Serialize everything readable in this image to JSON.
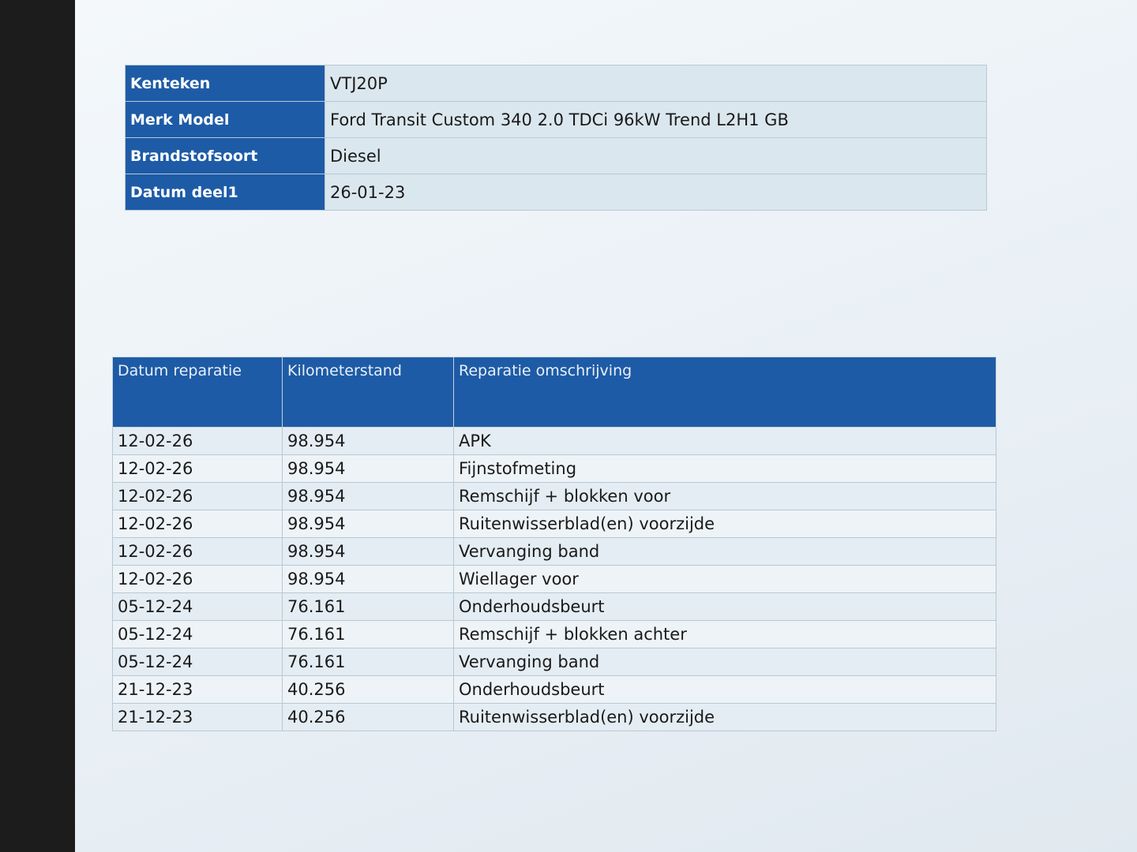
{
  "vehicle": {
    "rows": [
      [
        "Kenteken",
        "VTJ20P"
      ],
      [
        "Merk Model",
        "Ford Transit Custom 340 2.0 TDCi 96kW Trend L2H1 GB"
      ],
      [
        "Brandstofsoort",
        "Diesel"
      ],
      [
        "Datum deel1",
        "26-01-23"
      ]
    ]
  },
  "repairs": {
    "header": [
      "Datum reparatie",
      "Kilometerstand",
      "Reparatie omschrijving"
    ],
    "rows": [
      [
        "12-02-26",
        "98.954",
        "APK"
      ],
      [
        "12-02-26",
        "98.954",
        "Fijnstofmeting"
      ],
      [
        "12-02-26",
        "98.954",
        "Remschijf + blokken voor"
      ],
      [
        "12-02-26",
        "98.954",
        "Ruitenwisserblad(en) voorzijde"
      ],
      [
        "12-02-26",
        "98.954",
        "Vervanging band"
      ],
      [
        "12-02-26",
        "98.954",
        "Wiellager voor"
      ],
      [
        "05-12-24",
        "76.161",
        "Onderhoudsbeurt"
      ],
      [
        "05-12-24",
        "76.161",
        "Remschijf + blokken achter"
      ],
      [
        "05-12-24",
        "76.161",
        "Vervanging band"
      ],
      [
        "21-12-23",
        "40.256",
        "Onderhoudsbeurt"
      ],
      [
        "21-12-23",
        "40.256",
        "Ruitenwisserblad(en) voorzijde"
      ]
    ]
  }
}
